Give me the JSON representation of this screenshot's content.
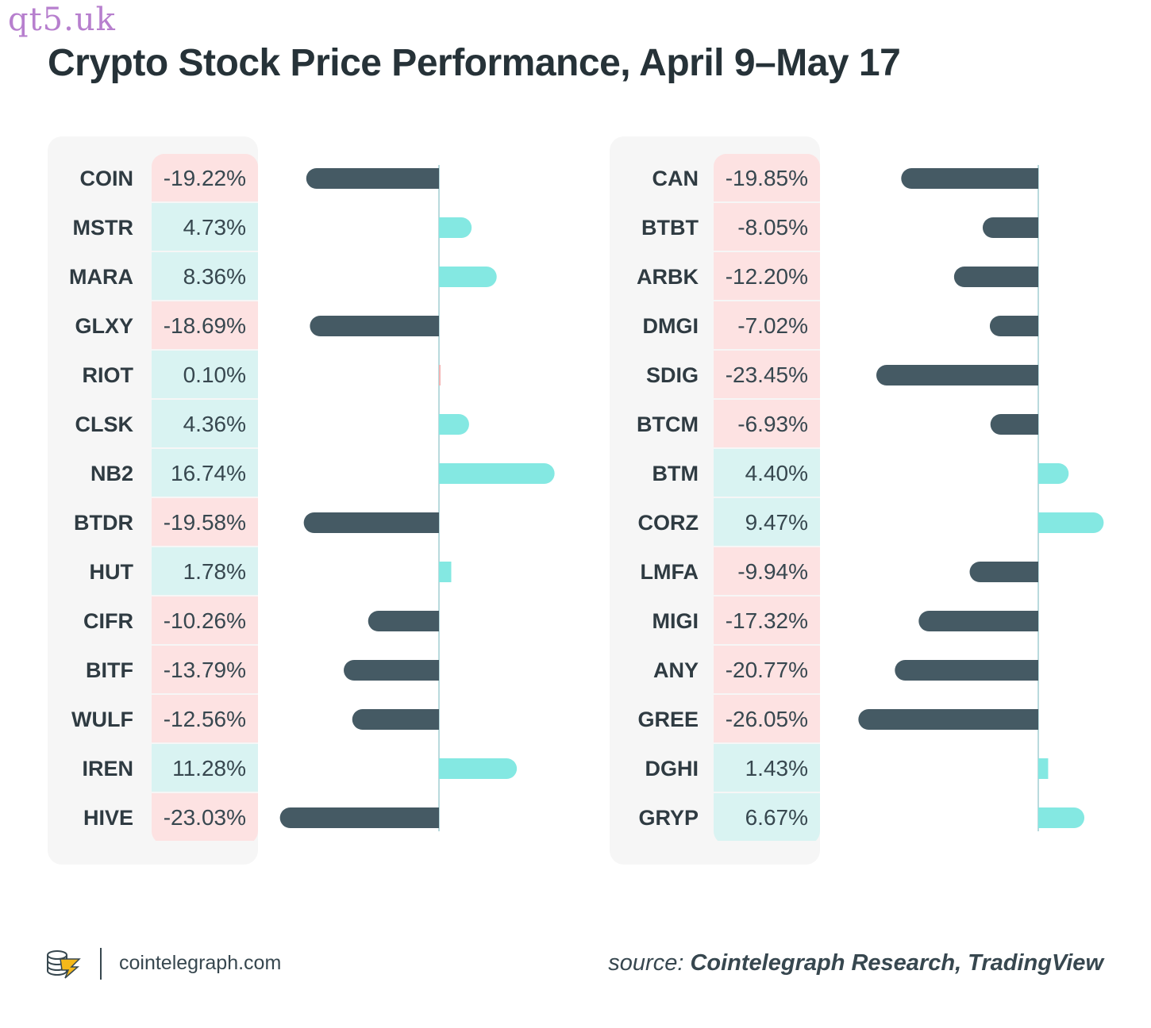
{
  "watermark": "qt5.uk",
  "colors": {
    "negative_bar": "#455a64",
    "positive_bar": "#84e8e2",
    "negative_cell": "#fde2e2",
    "positive_cell": "#d9f3f2",
    "axis": "#b9dadd"
  },
  "chart_data": {
    "type": "bar",
    "orientation": "horizontal",
    "title": "Crypto Stock Price Performance, April 9–May 17",
    "panels": [
      {
        "categories": [
          "COIN",
          "MSTR",
          "MARA",
          "GLXY",
          "RIOT",
          "CLSK",
          "NB2",
          "BTDR",
          "HUT",
          "CIFR",
          "BITF",
          "WULF",
          "IREN",
          "HIVE"
        ],
        "labels": [
          "-19.22%",
          "4.73%",
          "8.36%",
          "-18.69%",
          "0.10%",
          "4.36%",
          "16.74%",
          "-19.58%",
          "1.78%",
          "-10.26%",
          "-13.79%",
          "-12.56%",
          "11.28%",
          "-23.03%"
        ],
        "values": [
          -19.22,
          4.73,
          8.36,
          -18.69,
          0.1,
          4.36,
          16.74,
          -19.58,
          1.78,
          -10.26,
          -13.79,
          -12.56,
          11.28,
          -23.03
        ]
      },
      {
        "categories": [
          "CAN",
          "BTBT",
          "ARBK",
          "DMGI",
          "SDIG",
          "BTCM",
          "BTM",
          "CORZ",
          "LMFA",
          "MIGI",
          "ANY",
          "GREE",
          "DGHI",
          "GRYP"
        ],
        "labels": [
          "-19.85%",
          "-8.05%",
          "-12.20%",
          "-7.02%",
          "-23.45%",
          "-6.93%",
          "4.40%",
          "9.47%",
          "-9.94%",
          "-17.32%",
          "-20.77%",
          "-26.05%",
          "1.43%",
          "6.67%"
        ],
        "values": [
          -19.85,
          -8.05,
          -12.2,
          -7.02,
          -23.45,
          -6.93,
          4.4,
          9.47,
          -9.94,
          -17.32,
          -20.77,
          -26.05,
          1.43,
          6.67
        ]
      }
    ]
  },
  "footer": {
    "site": "cointelegraph.com",
    "source_label": "source:",
    "source_names": "Cointelegraph Research, TradingView",
    "logo_icon": "cointelegraph-logo-icon"
  }
}
